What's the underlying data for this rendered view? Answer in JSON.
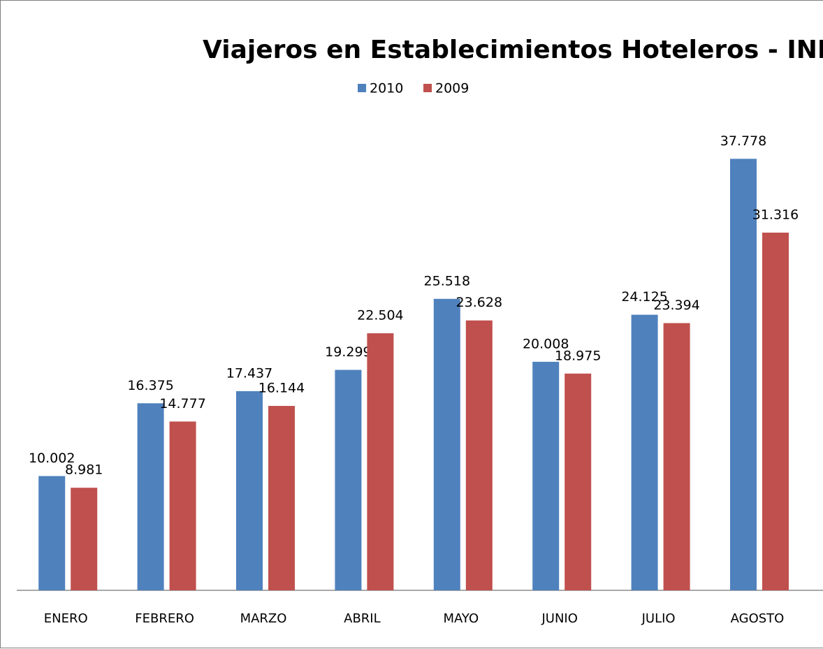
{
  "chart_data": {
    "type": "bar",
    "title": "Viajeros en Establecimientos Hoteleros - INE",
    "categories": [
      "ENERO",
      "FEBRERO",
      "MARZO",
      "ABRIL",
      "MAYO",
      "JUNIO",
      "JULIO",
      "AGOSTO"
    ],
    "series": [
      {
        "name": "2010",
        "color": "#4f81bd",
        "values": [
          10.002,
          16.375,
          17.437,
          19.299,
          25.518,
          20.008,
          24.125,
          37.778
        ]
      },
      {
        "name": "2009",
        "color": "#c0504d",
        "values": [
          8.981,
          14.777,
          16.144,
          22.504,
          23.628,
          18.975,
          23.394,
          31.316
        ]
      }
    ],
    "ylim": [
      0,
      40
    ],
    "legend": "top"
  }
}
